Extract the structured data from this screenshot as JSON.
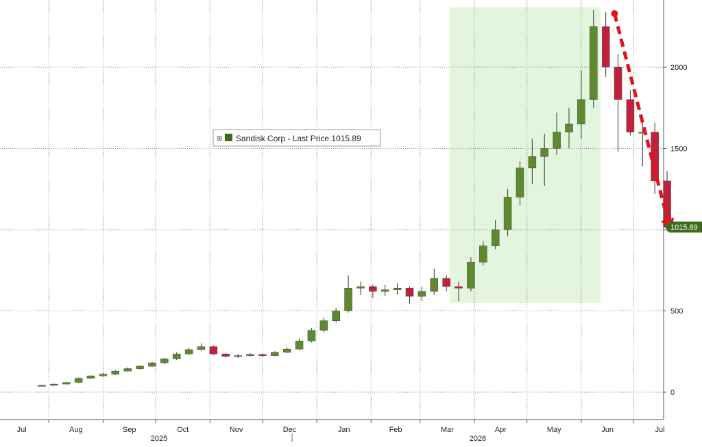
{
  "chart_data": {
    "type": "candlestick",
    "title": "",
    "xlabel": "",
    "ylabel": "",
    "ylim": [
      -170,
      2400
    ],
    "y_ticks": [
      0,
      500,
      1000,
      1500,
      2000
    ],
    "grid": true,
    "legend": {
      "placement": "center-left",
      "text": "Sandisk Corp - Last Price 1015.89",
      "expand_glyph": "⊞"
    },
    "last_price": {
      "label": "1015.89",
      "value": 1015.89
    },
    "colors": {
      "up": "#5d8a2e",
      "down": "#c3203a",
      "highlight": "#e3f5dc",
      "arrow": "#e0141e",
      "last_badge": "#3d6b1c",
      "grid": "#888888"
    },
    "months": [
      {
        "label": "Jul",
        "date": "2025-07-01"
      },
      {
        "label": "Aug",
        "date": "2025-08-01"
      },
      {
        "label": "Sep",
        "date": "2025-09-01"
      },
      {
        "label": "Oct",
        "date": "2025-10-01"
      },
      {
        "label": "Nov",
        "date": "2025-11-01"
      },
      {
        "label": "Dec",
        "date": "2025-12-01"
      },
      {
        "label": "Jan",
        "date": "2026-01-01"
      },
      {
        "label": "Feb",
        "date": "2026-02-01"
      },
      {
        "label": "Mar",
        "date": "2026-03-01"
      },
      {
        "label": "Apr",
        "date": "2026-04-01"
      },
      {
        "label": "May",
        "date": "2026-05-01"
      },
      {
        "label": "Jun",
        "date": "2026-06-01"
      },
      {
        "label": "Jul",
        "date": "2026-07-01"
      }
    ],
    "years": [
      {
        "label": "2025",
        "date": "2025-10-01"
      },
      {
        "label": "2026",
        "date": "2026-04-01"
      }
    ],
    "highlight_region": {
      "start": "2026-03-18",
      "end": "2026-06-12",
      "y_low": 550,
      "y_high": 2370
    },
    "arrow": {
      "from": {
        "date": "2026-06-20",
        "value": 2330
      },
      "to": {
        "date": "2026-07-22",
        "value": 990
      }
    },
    "x": [
      "2025-07-28",
      "2025-08-04",
      "2025-08-11",
      "2025-08-18",
      "2025-08-25",
      "2025-09-01",
      "2025-09-08",
      "2025-09-15",
      "2025-09-22",
      "2025-09-29",
      "2025-10-06",
      "2025-10-13",
      "2025-10-20",
      "2025-10-27",
      "2025-11-03",
      "2025-11-10",
      "2025-11-17",
      "2025-11-24",
      "2025-12-01",
      "2025-12-08",
      "2025-12-15",
      "2025-12-22",
      "2025-12-29",
      "2026-01-05",
      "2026-01-12",
      "2026-01-19",
      "2026-01-26",
      "2026-02-02",
      "2026-02-09",
      "2026-02-16",
      "2026-02-23",
      "2026-03-02",
      "2026-03-09",
      "2026-03-16",
      "2026-03-23",
      "2026-03-30",
      "2026-04-06",
      "2026-04-13",
      "2026-04-20",
      "2026-04-27",
      "2026-05-04",
      "2026-05-11",
      "2026-05-18",
      "2026-05-25",
      "2026-06-01",
      "2026-06-08",
      "2026-06-15",
      "2026-06-22",
      "2026-06-29",
      "2026-07-06",
      "2026-07-13",
      "2026-07-20"
    ],
    "series": [
      {
        "name": "Sandisk Corp",
        "open": [
          40,
          42,
          50,
          60,
          85,
          100,
          110,
          130,
          145,
          160,
          180,
          205,
          235,
          262,
          280,
          235,
          220,
          225,
          232,
          225,
          245,
          265,
          315,
          380,
          440,
          500,
          640,
          650,
          620,
          630,
          640,
          590,
          620,
          700,
          650,
          640,
          800,
          900,
          1000,
          1200,
          1380,
          1450,
          1500,
          1600,
          1650,
          1800,
          2250,
          2000,
          1800,
          1600,
          1600,
          1300
        ],
        "close": [
          42,
          50,
          60,
          85,
          100,
          110,
          130,
          145,
          160,
          180,
          205,
          235,
          262,
          280,
          235,
          220,
          225,
          232,
          225,
          245,
          265,
          315,
          380,
          440,
          500,
          640,
          650,
          620,
          630,
          640,
          590,
          620,
          700,
          650,
          640,
          800,
          900,
          1000,
          1200,
          1380,
          1450,
          1500,
          1600,
          1650,
          1800,
          2250,
          2000,
          1800,
          1600,
          1600,
          1300,
          1015.89
        ],
        "high": [
          45,
          53,
          63,
          90,
          105,
          118,
          136,
          152,
          166,
          188,
          212,
          245,
          275,
          300,
          288,
          242,
          235,
          240,
          238,
          252,
          275,
          330,
          395,
          458,
          520,
          720,
          680,
          660,
          660,
          670,
          650,
          650,
          760,
          720,
          680,
          830,
          930,
          1060,
          1250,
          1420,
          1560,
          1590,
          1720,
          1750,
          1980,
          2350,
          2340,
          2080,
          1860,
          1700,
          1660,
          1360
        ],
        "low": [
          36,
          39,
          47,
          56,
          80,
          94,
          105,
          125,
          138,
          154,
          172,
          198,
          228,
          255,
          228,
          212,
          210,
          218,
          215,
          220,
          240,
          258,
          306,
          368,
          428,
          490,
          600,
          580,
          590,
          600,
          545,
          560,
          600,
          620,
          560,
          620,
          780,
          880,
          960,
          1150,
          1280,
          1270,
          1460,
          1500,
          1560,
          1750,
          1940,
          1480,
          1580,
          1390,
          1220,
          990
        ]
      }
    ]
  }
}
